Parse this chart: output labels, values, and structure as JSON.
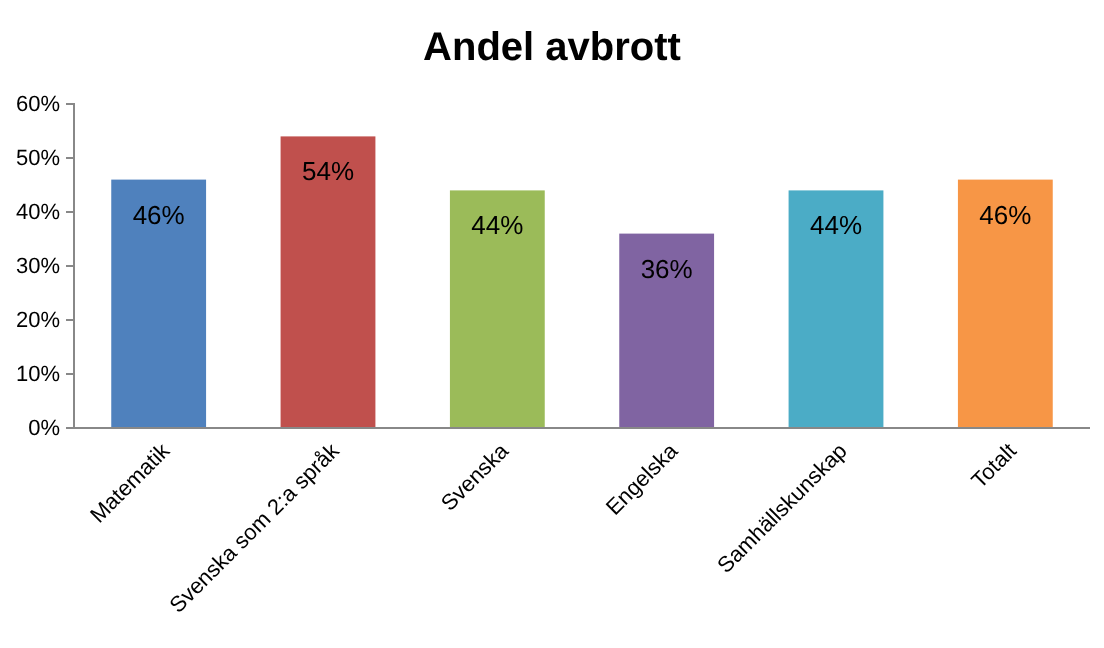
{
  "chart_data": {
    "type": "bar",
    "title": "Andel avbrott",
    "categories": [
      "Matematik",
      "Svenska som 2:a språk",
      "Svenska",
      "Engelska",
      "Samhällskunskap",
      "Totalt"
    ],
    "values": [
      46,
      54,
      44,
      36,
      44,
      46
    ],
    "colors": [
      "#4f81bd",
      "#c0504d",
      "#9bbb59",
      "#8064a2",
      "#4bacc6",
      "#f79646"
    ],
    "value_labels": [
      "46%",
      "54%",
      "44%",
      "36%",
      "44%",
      "46%"
    ],
    "ylim": [
      0,
      60
    ],
    "yticks": [
      {
        "value": 0,
        "label": "0%"
      },
      {
        "value": 10,
        "label": "10%"
      },
      {
        "value": 20,
        "label": "20%"
      },
      {
        "value": 30,
        "label": "30%"
      },
      {
        "value": 40,
        "label": "40%"
      },
      {
        "value": 50,
        "label": "50%"
      },
      {
        "value": 60,
        "label": "60%"
      }
    ],
    "grid": false
  }
}
